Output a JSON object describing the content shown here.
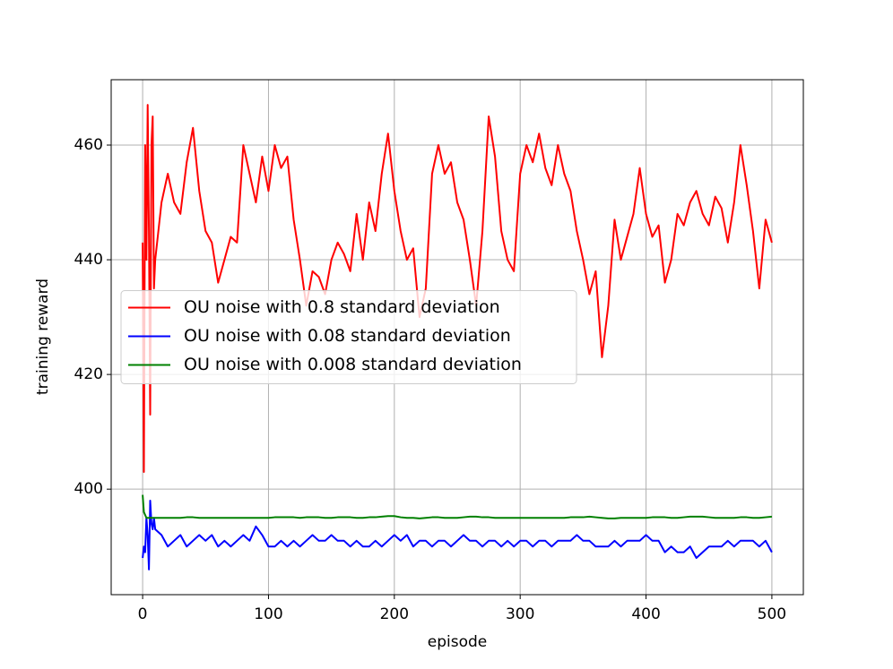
{
  "chart_data": {
    "type": "line",
    "xlabel": "episode",
    "ylabel": "training reward",
    "x": [
      0,
      1,
      2,
      3,
      4,
      5,
      6,
      7,
      8,
      9,
      10,
      15,
      20,
      25,
      30,
      35,
      40,
      45,
      50,
      55,
      60,
      65,
      70,
      75,
      80,
      85,
      90,
      95,
      100,
      105,
      110,
      115,
      120,
      125,
      130,
      135,
      140,
      145,
      150,
      155,
      160,
      165,
      170,
      175,
      180,
      185,
      190,
      195,
      200,
      205,
      210,
      215,
      220,
      225,
      230,
      235,
      240,
      245,
      250,
      255,
      260,
      265,
      270,
      275,
      280,
      285,
      290,
      295,
      300,
      305,
      310,
      315,
      320,
      325,
      330,
      335,
      340,
      345,
      350,
      355,
      360,
      365,
      370,
      375,
      380,
      385,
      390,
      395,
      400,
      405,
      410,
      415,
      420,
      425,
      430,
      435,
      440,
      445,
      450,
      455,
      460,
      465,
      470,
      475,
      480,
      485,
      490,
      495,
      500
    ],
    "series": [
      {
        "name": "OU noise with 0.8 standard deviation",
        "color": "red",
        "values": [
          443,
          403,
          460,
          440,
          467,
          445,
          413,
          460,
          465,
          435,
          440,
          450,
          455,
          450,
          448,
          457,
          463,
          452,
          445,
          443,
          436,
          440,
          444,
          443,
          460,
          455,
          450,
          458,
          452,
          460,
          456,
          458,
          447,
          440,
          432,
          438,
          437,
          434,
          440,
          443,
          441,
          438,
          448,
          440,
          450,
          445,
          455,
          462,
          452,
          445,
          440,
          442,
          430,
          435,
          455,
          460,
          455,
          457,
          450,
          447,
          440,
          432,
          445,
          465,
          458,
          445,
          440,
          438,
          455,
          460,
          457,
          462,
          456,
          453,
          460,
          455,
          452,
          445,
          440,
          434,
          438,
          423,
          432,
          447,
          440,
          444,
          448,
          456,
          448,
          444,
          446,
          436,
          440,
          448,
          446,
          450,
          452,
          448,
          446,
          451,
          449,
          443,
          450,
          460,
          453,
          445,
          435,
          447,
          443
        ]
      },
      {
        "name": "OU noise with 0.08 standard deviation",
        "color": "blue",
        "values": [
          388,
          390,
          389,
          395,
          392,
          386,
          398,
          394,
          393,
          395,
          393,
          392,
          390,
          391,
          392,
          390,
          391,
          392,
          391,
          392,
          390,
          391,
          390,
          391,
          392,
          391,
          393.5,
          392,
          390,
          390,
          391,
          390,
          391,
          390,
          391,
          392,
          391,
          391,
          392,
          391,
          391,
          390,
          391,
          390,
          390,
          391,
          390,
          391,
          392,
          391,
          392,
          390,
          391,
          391,
          390,
          391,
          391,
          390,
          391,
          392,
          391,
          391,
          390,
          391,
          391,
          390,
          391,
          390,
          391,
          391,
          390,
          391,
          391,
          390,
          391,
          391,
          391,
          392,
          391,
          391,
          390,
          390,
          390,
          391,
          390,
          391,
          391,
          391,
          392,
          391,
          391,
          389,
          390,
          389,
          389,
          390,
          388,
          389,
          390,
          390,
          390,
          391,
          390,
          391,
          391,
          391,
          390,
          391,
          389
        ]
      },
      {
        "name": "OU noise with 0.008 standard deviation",
        "color": "green",
        "values": [
          399,
          396,
          395.5,
          395,
          395,
          395,
          395,
          395,
          395,
          395,
          395,
          395,
          395,
          395,
          395,
          395.1,
          395.1,
          395,
          395,
          395,
          395,
          395,
          395,
          395,
          395,
          395,
          395,
          395,
          395,
          395.1,
          395.1,
          395.1,
          395.1,
          395,
          395.1,
          395.1,
          395.1,
          395,
          395,
          395.1,
          395.1,
          395.1,
          395,
          395,
          395.1,
          395.1,
          395.2,
          395.3,
          395.3,
          395.1,
          395,
          395,
          394.9,
          395,
          395.1,
          395.1,
          395,
          395,
          395,
          395.1,
          395.2,
          395.2,
          395.1,
          395.1,
          395,
          395,
          395,
          395,
          395,
          395,
          395,
          395,
          395,
          395,
          395,
          395,
          395.1,
          395.1,
          395.1,
          395.2,
          395.1,
          395,
          394.9,
          394.9,
          395,
          395,
          395,
          395,
          395,
          395.1,
          395.1,
          395.1,
          395,
          395,
          395.1,
          395.2,
          395.2,
          395.2,
          395.1,
          395,
          395,
          395,
          395,
          395.1,
          395.1,
          395,
          395,
          395.1,
          395.2
        ]
      }
    ],
    "xlim": [
      -25,
      525
    ],
    "ylim": [
      381.6,
      471.4
    ],
    "xticks": [
      0,
      100,
      200,
      300,
      400,
      500
    ],
    "yticks": [
      400,
      420,
      440,
      460
    ],
    "grid": true,
    "legend": "center left"
  }
}
